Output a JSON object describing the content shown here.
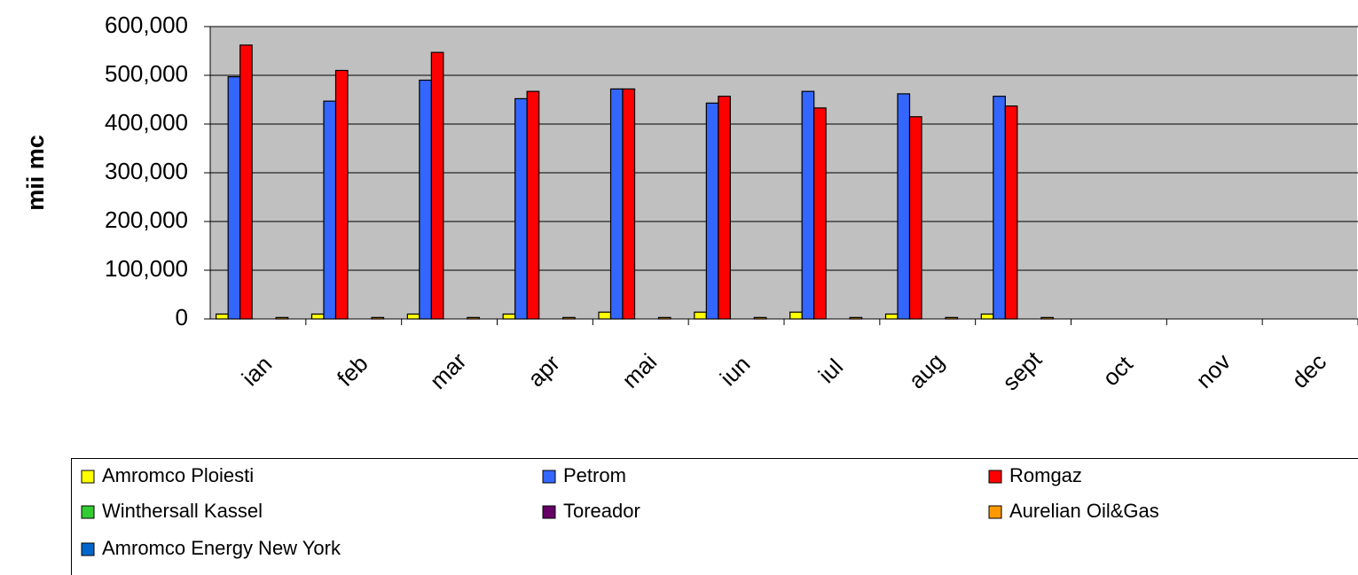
{
  "chart_data": {
    "type": "bar",
    "categories": [
      "ian",
      "feb",
      "mar",
      "apr",
      "mai",
      "iun",
      "iul",
      "aug",
      "sept",
      "oct",
      "nov",
      "dec"
    ],
    "series": [
      {
        "name": "Amromco Ploiesti",
        "color": "#ffff00",
        "values": [
          10000,
          10000,
          10000,
          10000,
          14000,
          14000,
          14000,
          10000,
          10000,
          null,
          null,
          null
        ]
      },
      {
        "name": "Petrom",
        "color": "#3366ff",
        "values": [
          497000,
          447000,
          490000,
          452000,
          472000,
          443000,
          467000,
          462000,
          457000,
          null,
          null,
          null
        ]
      },
      {
        "name": "Romgaz",
        "color": "#ff0000",
        "values": [
          562000,
          510000,
          547000,
          467000,
          472000,
          457000,
          433000,
          415000,
          437000,
          null,
          null,
          null
        ]
      },
      {
        "name": "Winthersall Kassel",
        "color": "#33cc33",
        "values": [
          null,
          null,
          null,
          null,
          null,
          null,
          null,
          null,
          null,
          null,
          null,
          null
        ]
      },
      {
        "name": "Toreador",
        "color": "#660066",
        "values": [
          null,
          null,
          null,
          null,
          null,
          null,
          null,
          null,
          null,
          null,
          null,
          null
        ]
      },
      {
        "name": "Aurelian Oil&Gas",
        "color": "#ff9900",
        "values": [
          3000,
          3000,
          3000,
          3000,
          3000,
          3000,
          3000,
          3000,
          3000,
          null,
          null,
          null
        ]
      },
      {
        "name": "Amromco Energy New York",
        "color": "#0066cc",
        "values": [
          null,
          null,
          null,
          null,
          null,
          null,
          null,
          null,
          null,
          null,
          null,
          null
        ]
      }
    ],
    "y_label": "mii mc",
    "ylim": [
      0,
      600000
    ],
    "yticks": [
      0,
      {
        "value": 100000,
        "label": "100,000"
      },
      {
        "value": 200000,
        "label": "200,000"
      },
      {
        "value": 300000,
        "label": "300,000"
      },
      {
        "value": 400000,
        "label": "400,000"
      },
      {
        "value": 500000,
        "label": "500,000"
      },
      {
        "value": 600000,
        "label": "600,000"
      }
    ],
    "grid": true
  }
}
